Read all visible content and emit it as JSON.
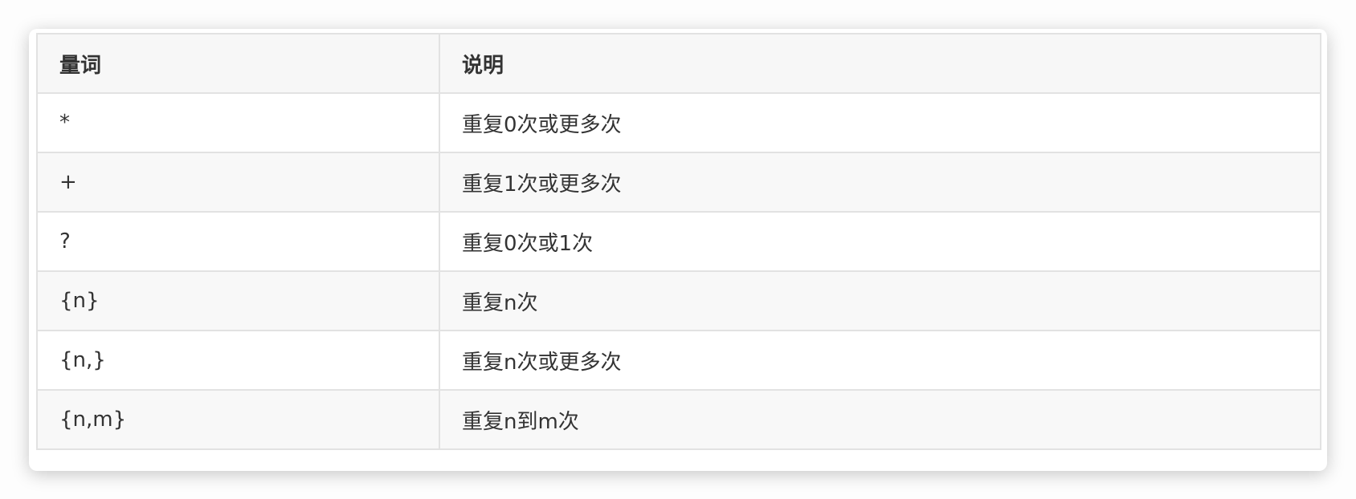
{
  "table": {
    "headers": [
      "量词",
      "说明"
    ],
    "rows": [
      [
        "*",
        "重复0次或更多次"
      ],
      [
        "+",
        "重复1次或更多次"
      ],
      [
        "?",
        "重复0次或1次"
      ],
      [
        "{n}",
        "重复n次"
      ],
      [
        "{n,}",
        "重复n次或更多次"
      ],
      [
        "{n,m}",
        "重复n到m次"
      ]
    ]
  }
}
